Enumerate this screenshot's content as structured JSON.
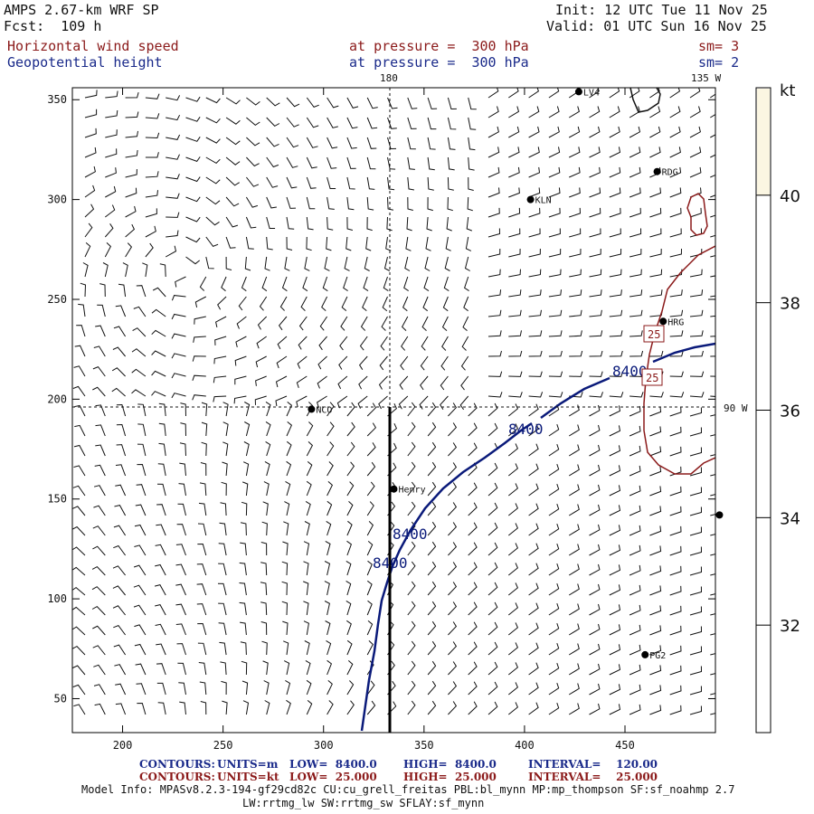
{
  "header": {
    "model": "AMPS 2.67-km WRF SP",
    "forecast": "Fcst:  109 h",
    "init": "Init: 12 UTC Tue 11 Nov 25",
    "valid": "Valid: 01 UTC Sun 16 Nov 25",
    "field1": "Horizontal wind speed",
    "field1_level": "at pressure =  300 hPa",
    "field1_sm": "sm= 3",
    "field2": "Geopotential height",
    "field2_level": "at pressure =  300 hPa",
    "field2_sm": "sm= 2"
  },
  "map": {
    "x_ticks": [
      "200",
      "250",
      "300",
      "350",
      "400",
      "450"
    ],
    "y_ticks": [
      "50",
      "100",
      "150",
      "200",
      "250",
      "300",
      "350"
    ],
    "lon_label_180": "180",
    "lon_label_135w": "135 W",
    "lon_label_90w": "90 W",
    "stations": [
      {
        "name": "LV4",
        "x": 427,
        "y": 354
      },
      {
        "name": "RDG",
        "x": 466,
        "y": 314
      },
      {
        "name": "KLN",
        "x": 403,
        "y": 300
      },
      {
        "name": "HRG",
        "x": 469,
        "y": 239
      },
      {
        "name": "NCO",
        "x": 294,
        "y": 195
      },
      {
        "name": "Henry",
        "x": 335,
        "y": 155
      },
      {
        "name": "PG2",
        "x": 460,
        "y": 72
      },
      {
        "name": "",
        "x": 497,
        "y": 142
      }
    ],
    "contour_labels": [
      "8400",
      "8400",
      "8400",
      "8400"
    ],
    "wind_labels": [
      "25",
      "25"
    ],
    "height_contour_value": 8400
  },
  "colorbar": {
    "unit": "kt",
    "ticks": [
      "40",
      "38",
      "36",
      "34",
      "32"
    ],
    "range": [
      30,
      42
    ],
    "fill_from": 40,
    "fill_color": "#fbf6e2"
  },
  "footer": {
    "row1": {
      "contours": "CONTOURS:",
      "units": "UNITS=m",
      "low": "LOW=  8400.0",
      "high": "HIGH=  8400.0",
      "interval": "INTERVAL=    120.00"
    },
    "row2": {
      "contours": "CONTOURS:",
      "units": "UNITS=kt",
      "low": "LOW=  25.000",
      "high": "HIGH=  25.000",
      "interval": "INTERVAL=    25.000"
    },
    "model_info": "Model Info: MPASv8.2.3-194-gf29cd82c CU:cu_grell_freitas PBL:bl_mynn MP:mp_thompson SF:sf_noahmp 2.7",
    "model_info2": "LW:rrtmg_lw SW:rrtmg_sw SFLAY:sf_mynn"
  },
  "colors": {
    "height_contour": "#0a1a7a",
    "wind_contour": "#8b1a1a",
    "coast": "#111111",
    "barb": "#111111"
  }
}
